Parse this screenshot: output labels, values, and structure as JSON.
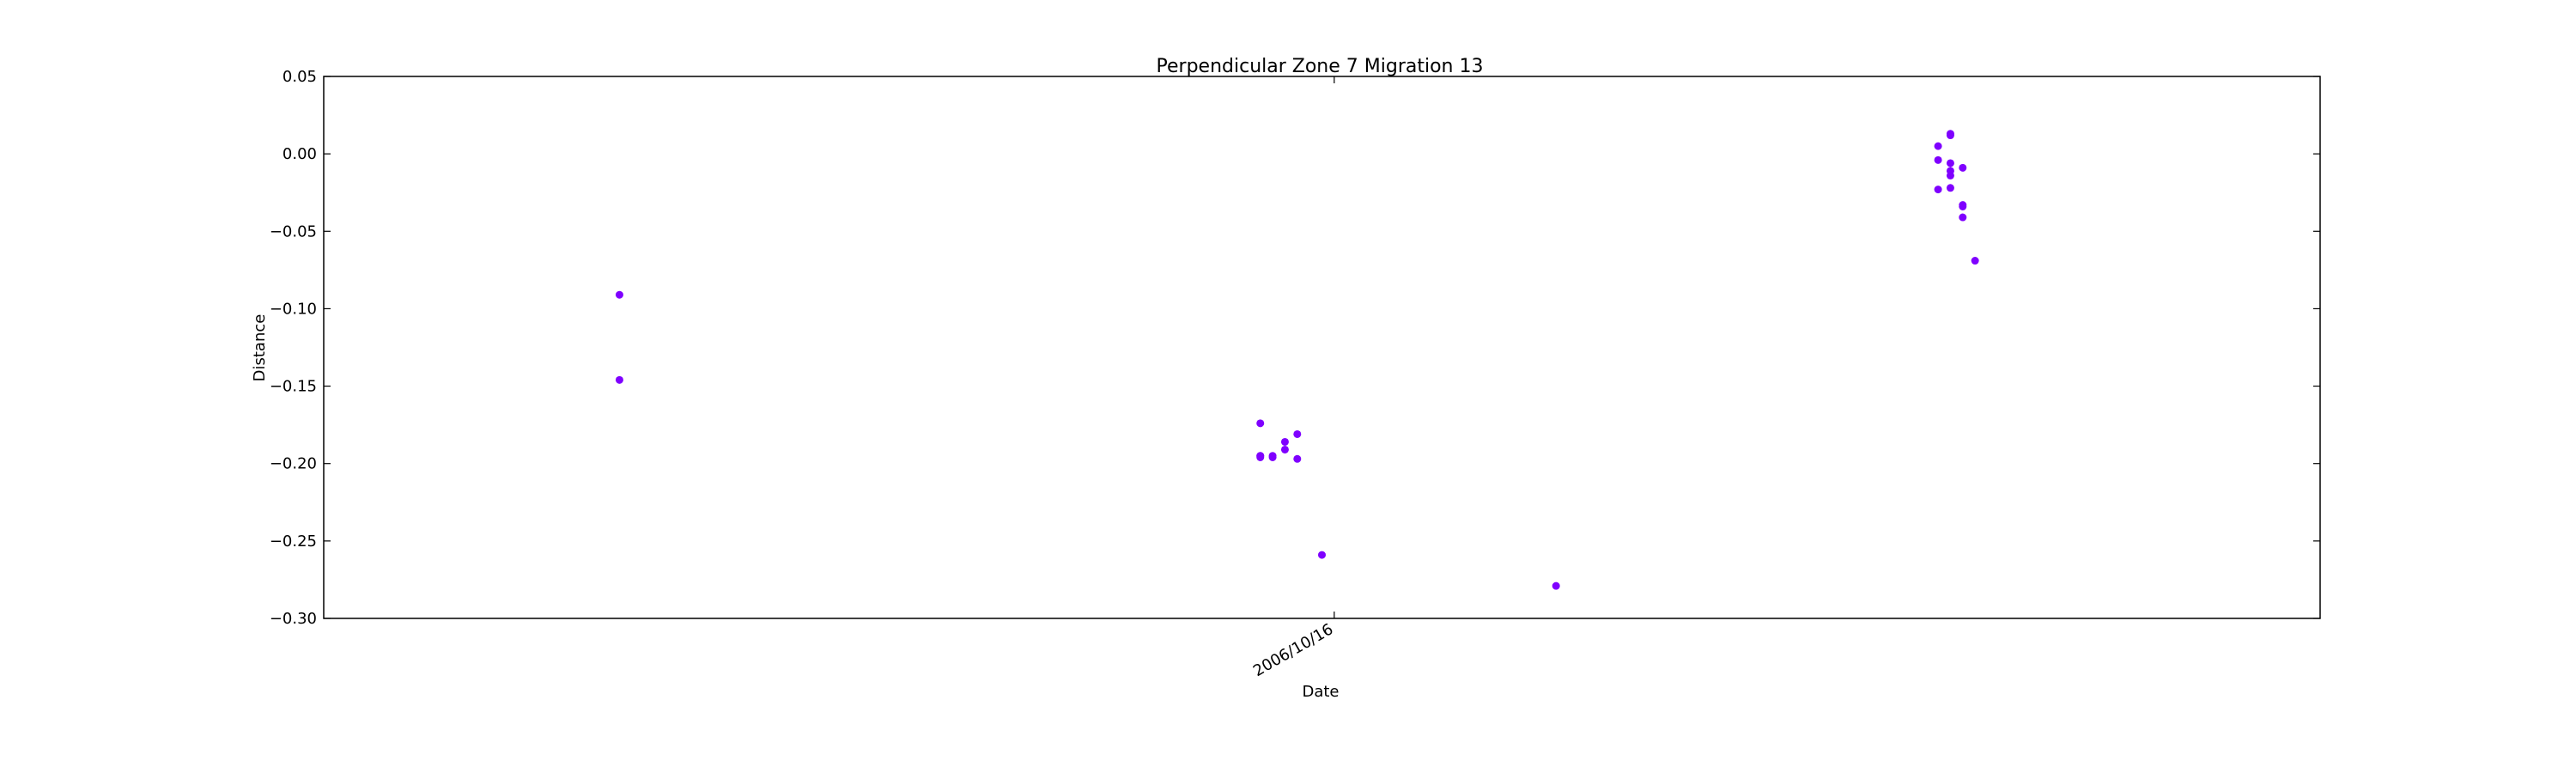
{
  "chart_data": {
    "type": "scatter",
    "title": "Perpendicular Zone 7 Migration 13",
    "xlabel": "Date",
    "ylabel": "Distance",
    "ylim": [
      -0.3,
      0.05
    ],
    "yticks": [
      -0.3,
      -0.25,
      -0.2,
      -0.15,
      -0.1,
      -0.05,
      0.0,
      0.05
    ],
    "ytick_labels": [
      "−0.30",
      "−0.25",
      "−0.20",
      "−0.15",
      "−0.10",
      "−0.05",
      "0.00",
      "0.05"
    ],
    "xlim": [
      "2006-07-26",
      "2007-01-04"
    ],
    "xticks": [
      "2006-10-16"
    ],
    "xtick_labels": [
      "2006/10/16"
    ],
    "marker_color": "#7f00ff",
    "grid": false,
    "legend": "none",
    "points": [
      {
        "x": "2006-08-19",
        "y": -0.091
      },
      {
        "x": "2006-08-19",
        "y": -0.146
      },
      {
        "x": "2006-10-10",
        "y": -0.174
      },
      {
        "x": "2006-10-10",
        "y": -0.196
      },
      {
        "x": "2006-10-10",
        "y": -0.195
      },
      {
        "x": "2006-10-10",
        "y": -0.195
      },
      {
        "x": "2006-10-11",
        "y": -0.195
      },
      {
        "x": "2006-10-11",
        "y": -0.196
      },
      {
        "x": "2006-10-12",
        "y": -0.186
      },
      {
        "x": "2006-10-12",
        "y": -0.191
      },
      {
        "x": "2006-10-13",
        "y": -0.181
      },
      {
        "x": "2006-10-13",
        "y": -0.197
      },
      {
        "x": "2006-10-15",
        "y": -0.259
      },
      {
        "x": "2006-11-03",
        "y": -0.279
      },
      {
        "x": "2006-12-05",
        "y": 0.012
      },
      {
        "x": "2006-12-05",
        "y": 0.013
      },
      {
        "x": "2006-12-04",
        "y": 0.005
      },
      {
        "x": "2006-12-04",
        "y": -0.004
      },
      {
        "x": "2006-12-05",
        "y": -0.006
      },
      {
        "x": "2006-12-05",
        "y": -0.011
      },
      {
        "x": "2006-12-05",
        "y": -0.014
      },
      {
        "x": "2006-12-06",
        "y": -0.009
      },
      {
        "x": "2006-12-04",
        "y": -0.023
      },
      {
        "x": "2006-12-05",
        "y": -0.022
      },
      {
        "x": "2006-12-06",
        "y": -0.033
      },
      {
        "x": "2006-12-06",
        "y": -0.034
      },
      {
        "x": "2006-12-06",
        "y": -0.041
      },
      {
        "x": "2006-12-07",
        "y": -0.069
      }
    ]
  }
}
